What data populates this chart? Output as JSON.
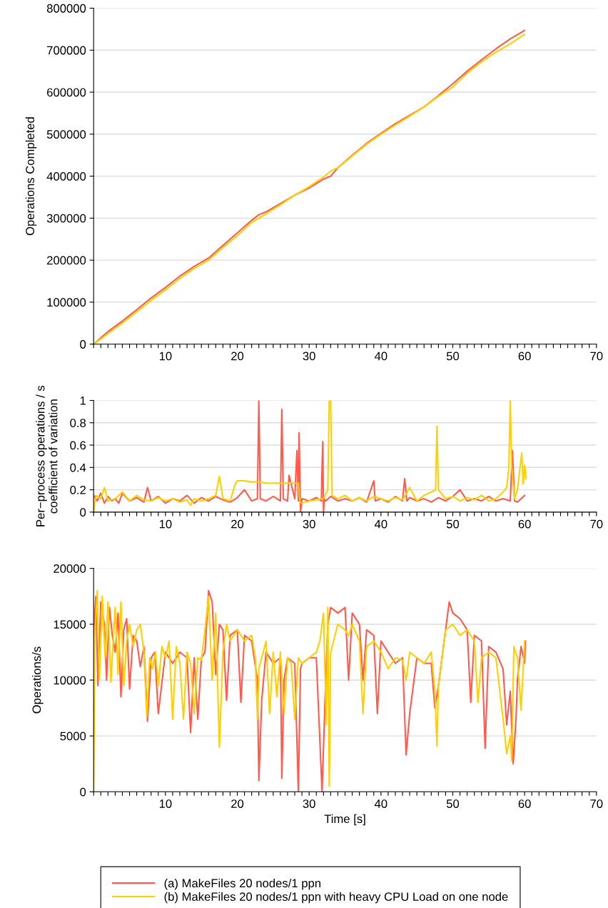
{
  "chart_data": [
    {
      "type": "line",
      "ylabel": "Operations Completed",
      "xlim": [
        0,
        70
      ],
      "ylim": [
        0,
        800000
      ],
      "yticks": [
        0,
        100000,
        200000,
        300000,
        400000,
        500000,
        600000,
        700000,
        800000
      ],
      "grid": "y",
      "xticks": [
        {
          "value": 0,
          "label": null
        },
        {
          "value": 1,
          "label": null
        },
        {
          "value": 2,
          "label": null
        },
        {
          "value": 3,
          "label": null
        },
        {
          "value": 4,
          "label": null
        },
        {
          "value": 5,
          "label": null
        },
        {
          "value": 6,
          "label": null
        },
        {
          "value": 7,
          "label": null
        },
        {
          "value": 8,
          "label": null
        },
        {
          "value": 9,
          "label": null
        },
        10,
        {
          "value": 11,
          "label": null
        },
        {
          "value": 12,
          "label": null
        },
        {
          "value": 13,
          "label": null
        },
        {
          "value": 14,
          "label": null
        },
        {
          "value": 15,
          "label": null
        },
        {
          "value": 16,
          "label": null
        },
        {
          "value": 17,
          "label": null
        },
        {
          "value": 18,
          "label": null
        },
        {
          "value": 19,
          "label": null
        },
        20,
        {
          "value": 21,
          "label": null
        },
        {
          "value": 22,
          "label": null
        },
        {
          "value": 23,
          "label": null
        },
        {
          "value": 24,
          "label": null
        },
        {
          "value": 25,
          "label": null
        },
        {
          "value": 26,
          "label": null
        },
        {
          "value": 27,
          "label": null
        },
        {
          "value": 28,
          "label": null
        },
        {
          "value": 29,
          "label": null
        },
        30,
        {
          "value": 31,
          "label": null
        },
        {
          "value": 32,
          "label": null
        },
        {
          "value": 33,
          "label": null
        },
        {
          "value": 34,
          "label": null
        },
        {
          "value": 35,
          "label": null
        },
        {
          "value": 36,
          "label": null
        },
        {
          "value": 37,
          "label": null
        },
        {
          "value": 38,
          "label": null
        },
        {
          "value": 39,
          "label": null
        },
        40,
        {
          "value": 41,
          "label": null
        },
        {
          "value": 42,
          "label": null
        },
        {
          "value": 43,
          "label": null
        },
        {
          "value": 44,
          "label": null
        },
        {
          "value": 45,
          "label": null
        },
        {
          "value": 46,
          "label": null
        },
        {
          "value": 47,
          "label": null
        },
        {
          "value": 48,
          "label": null
        },
        {
          "value": 49,
          "label": null
        },
        50,
        {
          "value": 51,
          "label": null
        },
        {
          "value": 52,
          "label": null
        },
        {
          "value": 53,
          "label": null
        },
        {
          "value": 54,
          "label": null
        },
        {
          "value": 55,
          "label": null
        },
        {
          "value": 56,
          "label": null
        },
        {
          "value": 57,
          "label": null
        },
        {
          "value": 58,
          "label": null
        },
        {
          "value": 59,
          "label": null
        },
        60,
        {
          "value": 61,
          "label": null
        },
        {
          "value": 62,
          "label": null
        },
        {
          "value": 63,
          "label": null
        },
        {
          "value": 64,
          "label": null
        },
        {
          "value": 65,
          "label": null
        },
        {
          "value": 66,
          "label": null
        },
        {
          "value": 67,
          "label": null
        },
        {
          "value": 68,
          "label": null
        },
        {
          "value": 69,
          "label": null
        },
        70
      ],
      "series": [
        {
          "color": "#ff5a4e",
          "x": [
            0,
            2,
            4,
            6,
            8,
            10,
            12,
            14,
            16,
            18,
            20,
            22,
            23,
            24,
            26,
            28,
            30,
            32,
            33,
            34,
            36,
            38,
            40,
            42,
            44,
            46,
            48,
            50,
            52,
            54,
            56,
            58,
            60
          ],
          "values": [
            0,
            30000,
            55000,
            82000,
            110000,
            135000,
            162000,
            185000,
            205000,
            235000,
            265000,
            295000,
            308000,
            315000,
            335000,
            355000,
            372000,
            393000,
            400000,
            420000,
            450000,
            478000,
            502000,
            525000,
            545000,
            565000,
            592000,
            620000,
            650000,
            677000,
            703000,
            727000,
            747000
          ]
        },
        {
          "color": "#ffd000",
          "x": [
            0,
            2,
            4,
            6,
            8,
            10,
            12,
            14,
            16,
            18,
            20,
            22,
            24,
            26,
            28,
            30,
            32,
            33,
            34,
            36,
            38,
            40,
            42,
            44,
            46,
            48,
            50,
            52,
            54,
            56,
            58,
            60
          ],
          "values": [
            0,
            25000,
            50000,
            77000,
            104000,
            129000,
            156000,
            180000,
            200000,
            230000,
            258000,
            290000,
            310000,
            332000,
            355000,
            375000,
            398000,
            412000,
            420000,
            448000,
            476000,
            500000,
            522000,
            543000,
            565000,
            590000,
            612000,
            645000,
            672000,
            695000,
            715000,
            738000
          ]
        }
      ]
    },
    {
      "type": "line",
      "ylabel": "Per−process operations / s\ncoefficient of variation",
      "xlim": [
        0,
        70
      ],
      "ylim": [
        0,
        1
      ],
      "yticks": [
        0,
        0.2,
        0.4,
        0.6,
        0.8,
        1
      ],
      "grid": "y",
      "xticks": [
        {
          "value": 0,
          "label": null
        },
        {
          "value": 1,
          "label": null
        },
        {
          "value": 2,
          "label": null
        },
        {
          "value": 3,
          "label": null
        },
        {
          "value": 4,
          "label": null
        },
        {
          "value": 5,
          "label": null
        },
        {
          "value": 6,
          "label": null
        },
        {
          "value": 7,
          "label": null
        },
        {
          "value": 8,
          "label": null
        },
        {
          "value": 9,
          "label": null
        },
        10,
        {
          "value": 11,
          "label": null
        },
        {
          "value": 12,
          "label": null
        },
        {
          "value": 13,
          "label": null
        },
        {
          "value": 14,
          "label": null
        },
        {
          "value": 15,
          "label": null
        },
        {
          "value": 16,
          "label": null
        },
        {
          "value": 17,
          "label": null
        },
        {
          "value": 18,
          "label": null
        },
        {
          "value": 19,
          "label": null
        },
        20,
        {
          "value": 21,
          "label": null
        },
        {
          "value": 22,
          "label": null
        },
        {
          "value": 23,
          "label": null
        },
        {
          "value": 24,
          "label": null
        },
        {
          "value": 25,
          "label": null
        },
        {
          "value": 26,
          "label": null
        },
        {
          "value": 27,
          "label": null
        },
        {
          "value": 28,
          "label": null
        },
        {
          "value": 29,
          "label": null
        },
        30,
        {
          "value": 31,
          "label": null
        },
        {
          "value": 32,
          "label": null
        },
        {
          "value": 33,
          "label": null
        },
        {
          "value": 34,
          "label": null
        },
        {
          "value": 35,
          "label": null
        },
        {
          "value": 36,
          "label": null
        },
        {
          "value": 37,
          "label": null
        },
        {
          "value": 38,
          "label": null
        },
        {
          "value": 39,
          "label": null
        },
        40,
        {
          "value": 41,
          "label": null
        },
        {
          "value": 42,
          "label": null
        },
        {
          "value": 43,
          "label": null
        },
        {
          "value": 44,
          "label": null
        },
        {
          "value": 45,
          "label": null
        },
        {
          "value": 46,
          "label": null
        },
        {
          "value": 47,
          "label": null
        },
        {
          "value": 48,
          "label": null
        },
        {
          "value": 49,
          "label": null
        },
        50,
        {
          "value": 51,
          "label": null
        },
        {
          "value": 52,
          "label": null
        },
        {
          "value": 53,
          "label": null
        },
        {
          "value": 54,
          "label": null
        },
        {
          "value": 55,
          "label": null
        },
        {
          "value": 56,
          "label": null
        },
        {
          "value": 57,
          "label": null
        },
        {
          "value": 58,
          "label": null
        },
        {
          "value": 59,
          "label": null
        },
        60,
        {
          "value": 61,
          "label": null
        },
        {
          "value": 62,
          "label": null
        },
        {
          "value": 63,
          "label": null
        },
        {
          "value": 64,
          "label": null
        },
        {
          "value": 65,
          "label": null
        },
        {
          "value": 66,
          "label": null
        },
        {
          "value": 67,
          "label": null
        },
        {
          "value": 68,
          "label": null
        },
        {
          "value": 69,
          "label": null
        },
        70
      ],
      "series": [
        {
          "color": "#ff5a4e",
          "x": [
            0,
            0.5,
            1,
            1.5,
            2,
            2.5,
            3,
            3.5,
            4,
            5,
            6,
            7,
            7.5,
            8,
            9,
            10,
            11,
            12,
            13,
            14,
            15,
            16,
            17,
            18,
            19,
            20,
            21,
            22,
            22.8,
            23,
            23.2,
            24,
            25,
            26,
            26.2,
            26.4,
            27,
            27.2,
            28,
            28.3,
            28.5,
            28.6,
            28.8,
            29,
            30,
            31,
            31.7,
            31.8,
            31.9,
            32,
            32.1,
            32.3,
            33,
            34,
            35,
            36,
            37,
            38,
            39,
            39.2,
            40,
            41,
            42,
            43,
            43.3,
            43.6,
            44,
            45,
            46,
            47,
            48,
            49,
            50,
            51,
            52,
            53,
            54,
            55,
            56,
            57,
            58,
            58.3,
            58.6,
            59,
            60
          ],
          "values": [
            0.15,
            0.1,
            0.17,
            0.08,
            0.14,
            0.1,
            0.12,
            0.08,
            0.17,
            0.1,
            0.13,
            0.09,
            0.22,
            0.1,
            0.14,
            0.08,
            0.12,
            0.1,
            0.15,
            0.08,
            0.13,
            0.1,
            0.14,
            0.11,
            0.09,
            0.13,
            0.2,
            0.1,
            0.12,
            1,
            0.12,
            0.1,
            0.14,
            0.1,
            0.92,
            0.12,
            0.1,
            0.33,
            0.12,
            0.55,
            0.1,
            0.71,
            0,
            0.12,
            0.1,
            0.13,
            0.1,
            0.4,
            0.63,
            0,
            0.12,
            0.1,
            0.14,
            0.1,
            0.12,
            0.1,
            0.13,
            0.09,
            0.28,
            0.1,
            0.12,
            0.09,
            0.14,
            0.1,
            0.3,
            0.1,
            0.13,
            0.1,
            0.12,
            0.09,
            0.13,
            0.1,
            0.14,
            0.2,
            0.1,
            0.12,
            0.1,
            0.14,
            0.1,
            0.12,
            0.1,
            0.55,
            0.1,
            0.09,
            0.15
          ]
        },
        {
          "color": "#ffd000",
          "x": [
            0,
            0.3,
            1,
            1.5,
            2,
            3,
            4,
            5,
            6,
            7,
            8,
            9,
            10,
            11,
            12,
            13,
            13.5,
            14,
            15,
            16,
            17,
            17.5,
            18,
            19,
            19.7,
            20,
            21,
            22,
            23,
            24,
            25,
            26,
            27,
            28,
            28.5,
            28.7,
            29,
            30,
            31,
            32,
            32.6,
            32.8,
            33,
            33.2,
            34,
            35,
            36,
            37,
            38,
            39,
            40,
            41,
            42,
            43,
            44,
            45,
            46,
            47,
            47.6,
            47.8,
            48,
            49,
            50,
            51,
            52,
            53,
            54,
            55,
            56,
            57,
            57.5,
            57.8,
            58,
            58.2,
            58.6,
            59,
            59.6,
            59.8,
            60,
            60.2
          ],
          "values": [
            0,
            0.15,
            0.12,
            0.22,
            0.1,
            0.12,
            0.18,
            0.1,
            0.15,
            0.11,
            0.1,
            0.13,
            0.1,
            0.12,
            0.09,
            0.11,
            0.06,
            0.12,
            0.1,
            0.12,
            0.15,
            0.32,
            0.12,
            0.1,
            0.25,
            0.28,
            0.28,
            0.27,
            0.27,
            0.26,
            0.26,
            0.26,
            0.26,
            0.26,
            0.26,
            0.09,
            0.08,
            0.1,
            0.11,
            0.12,
            0.2,
            1,
            1,
            0.15,
            0.12,
            0.15,
            0.1,
            0.13,
            0.1,
            0.14,
            0.12,
            0.1,
            0.13,
            0.11,
            0.22,
            0.1,
            0.15,
            0.18,
            0.2,
            0.77,
            0.2,
            0.12,
            0.14,
            0.1,
            0.13,
            0.11,
            0.15,
            0.1,
            0.12,
            0.18,
            0.22,
            0.4,
            1,
            0.4,
            0.12,
            0.2,
            0.53,
            0.25,
            0.42,
            0.3
          ]
        }
      ]
    },
    {
      "type": "line",
      "xlabel": "Time [s]",
      "ylabel": "Operations/s",
      "xlim": [
        0,
        70
      ],
      "ylim": [
        0,
        20000
      ],
      "yticks": [
        0,
        5000,
        10000,
        15000,
        20000
      ],
      "grid": "y",
      "legend": "bottom",
      "xticks": [
        {
          "value": 0,
          "label": null
        },
        {
          "value": 1,
          "label": null
        },
        {
          "value": 2,
          "label": null
        },
        {
          "value": 3,
          "label": null
        },
        {
          "value": 4,
          "label": null
        },
        {
          "value": 5,
          "label": null
        },
        {
          "value": 6,
          "label": null
        },
        {
          "value": 7,
          "label": null
        },
        {
          "value": 8,
          "label": null
        },
        {
          "value": 9,
          "label": null
        },
        10,
        {
          "value": 11,
          "label": null
        },
        {
          "value": 12,
          "label": null
        },
        {
          "value": 13,
          "label": null
        },
        {
          "value": 14,
          "label": null
        },
        {
          "value": 15,
          "label": null
        },
        {
          "value": 16,
          "label": null
        },
        {
          "value": 17,
          "label": null
        },
        {
          "value": 18,
          "label": null
        },
        {
          "value": 19,
          "label": null
        },
        20,
        {
          "value": 21,
          "label": null
        },
        {
          "value": 22,
          "label": null
        },
        {
          "value": 23,
          "label": null
        },
        {
          "value": 24,
          "label": null
        },
        {
          "value": 25,
          "label": null
        },
        {
          "value": 26,
          "label": null
        },
        {
          "value": 27,
          "label": null
        },
        {
          "value": 28,
          "label": null
        },
        {
          "value": 29,
          "label": null
        },
        30,
        {
          "value": 31,
          "label": null
        },
        {
          "value": 32,
          "label": null
        },
        {
          "value": 33,
          "label": null
        },
        {
          "value": 34,
          "label": null
        },
        {
          "value": 35,
          "label": null
        },
        {
          "value": 36,
          "label": null
        },
        {
          "value": 37,
          "label": null
        },
        {
          "value": 38,
          "label": null
        },
        {
          "value": 39,
          "label": null
        },
        40,
        {
          "value": 41,
          "label": null
        },
        {
          "value": 42,
          "label": null
        },
        {
          "value": 43,
          "label": null
        },
        {
          "value": 44,
          "label": null
        },
        {
          "value": 45,
          "label": null
        },
        {
          "value": 46,
          "label": null
        },
        {
          "value": 47,
          "label": null
        },
        {
          "value": 48,
          "label": null
        },
        {
          "value": 49,
          "label": null
        },
        50,
        {
          "value": 51,
          "label": null
        },
        {
          "value": 52,
          "label": null
        },
        {
          "value": 53,
          "label": null
        },
        {
          "value": 54,
          "label": null
        },
        {
          "value": 55,
          "label": null
        },
        {
          "value": 56,
          "label": null
        },
        {
          "value": 57,
          "label": null
        },
        {
          "value": 58,
          "label": null
        },
        {
          "value": 59,
          "label": null
        },
        60,
        {
          "value": 61,
          "label": null
        },
        {
          "value": 62,
          "label": null
        },
        {
          "value": 63,
          "label": null
        },
        {
          "value": 64,
          "label": null
        },
        {
          "value": 65,
          "label": null
        },
        {
          "value": 66,
          "label": null
        },
        {
          "value": 67,
          "label": null
        },
        {
          "value": 68,
          "label": null
        },
        {
          "value": 69,
          "label": null
        },
        70
      ],
      "series": [
        {
          "name": "(a) MakeFiles 20 nodes/1 ppn",
          "color": "#ff5a4e",
          "x": [
            0,
            0.3,
            0.6,
            1,
            1.5,
            1.8,
            2.2,
            2.6,
            3,
            3.4,
            3.8,
            4.2,
            4.6,
            5,
            5.5,
            6,
            6.5,
            7,
            7.5,
            8,
            8.5,
            9,
            10,
            11,
            12,
            13,
            13.5,
            14,
            14.5,
            15,
            15.5,
            16,
            16.5,
            17,
            17.5,
            18,
            18.5,
            19,
            20,
            20.5,
            21,
            22,
            22.8,
            23,
            23.4,
            24,
            25,
            26,
            26.2,
            26.5,
            27,
            28,
            28.5,
            28.8,
            29,
            30,
            31,
            31.8,
            32.2,
            32.6,
            33,
            34,
            35,
            35.5,
            36,
            37,
            37.5,
            38,
            39,
            39.5,
            40,
            41,
            42,
            43,
            43.5,
            44,
            45,
            46,
            47,
            47.5,
            48,
            48.5,
            49,
            49.5,
            50,
            51,
            52,
            52.5,
            53,
            54,
            54.5,
            55,
            56,
            57,
            57.5,
            58,
            58.4,
            58.8,
            59,
            59.5,
            60,
            60.1
          ],
          "values": [
            14000,
            17500,
            9500,
            17000,
            15000,
            10000,
            16500,
            14000,
            12500,
            16000,
            8500,
            14500,
            15500,
            9200,
            14000,
            13500,
            11200,
            13000,
            6300,
            12000,
            12500,
            7000,
            12500,
            11500,
            12500,
            12000,
            5300,
            12000,
            6500,
            12000,
            12500,
            18000,
            17000,
            10500,
            15000,
            14500,
            8200,
            14000,
            14500,
            8000,
            14000,
            13500,
            10000,
            1000,
            8200,
            12500,
            11500,
            12000,
            1200,
            10000,
            12000,
            11500,
            0,
            11000,
            11500,
            12000,
            12000,
            0,
            8000,
            15000,
            16500,
            16000,
            16500,
            10000,
            16000,
            15000,
            10000,
            14500,
            14000,
            7000,
            13500,
            12500,
            11500,
            12000,
            3300,
            7000,
            12000,
            11500,
            11500,
            7500,
            9500,
            12000,
            14500,
            17000,
            16000,
            15500,
            14500,
            8000,
            14000,
            13500,
            3900,
            13000,
            12500,
            11000,
            6000,
            9000,
            2500,
            6500,
            10000,
            13000,
            11500,
            13500
          ]
        },
        {
          "name": "(b) MakeFiles 20 nodes/1 ppn with heavy CPU Load on one node",
          "color": "#ffd000",
          "x": [
            0,
            0.2,
            0.5,
            0.8,
            1.2,
            1.6,
            2,
            2.4,
            3,
            3.4,
            3.8,
            4.2,
            4.6,
            5,
            5.5,
            6,
            6.5,
            7,
            7.4,
            7.8,
            8.2,
            8.6,
            9,
            9.5,
            10,
            10.5,
            11,
            11.5,
            12,
            12.5,
            13,
            13.5,
            14,
            14.5,
            15,
            15.5,
            16,
            16.5,
            17,
            17.5,
            18,
            18.5,
            19,
            19.5,
            20,
            21,
            22,
            22.5,
            22.8,
            23,
            24,
            24.5,
            25,
            25.5,
            26,
            26.5,
            27,
            27.5,
            28,
            28.5,
            29,
            30,
            31,
            31.5,
            32,
            32.4,
            32.6,
            32.8,
            33,
            34,
            35,
            35.5,
            36,
            37,
            37.5,
            38,
            39,
            40,
            41,
            42,
            43,
            43.5,
            44,
            45,
            46,
            47,
            47.5,
            47.8,
            48,
            48.5,
            49,
            50,
            51,
            52,
            53,
            53.5,
            54,
            55,
            56,
            57,
            57.5,
            58,
            58.2,
            58.5,
            59,
            59.5,
            60
          ],
          "values": [
            0,
            14500,
            18000,
            10000,
            17500,
            12000,
            17000,
            9800,
            16500,
            10500,
            17000,
            9500,
            13500,
            15000,
            13000,
            14500,
            15000,
            12500,
            6700,
            12000,
            11000,
            12500,
            9500,
            13000,
            12000,
            13500,
            6500,
            13000,
            11500,
            6500,
            12500,
            11500,
            7000,
            12000,
            11800,
            14500,
            17500,
            10000,
            16000,
            4000,
            12500,
            15000,
            13500,
            14000,
            14500,
            13500,
            14000,
            12000,
            6500,
            11000,
            13500,
            7000,
            12500,
            8500,
            12500,
            7000,
            12000,
            11500,
            6500,
            12000,
            11500,
            12000,
            12500,
            13500,
            16000,
            6000,
            16500,
            500,
            12500,
            15000,
            14500,
            14000,
            15000,
            13500,
            7000,
            13000,
            13500,
            12500,
            11000,
            12000,
            11800,
            10000,
            12500,
            12000,
            11500,
            12500,
            9000,
            4100,
            9500,
            12000,
            14500,
            15000,
            14000,
            14500,
            13500,
            8000,
            12000,
            12500,
            12000,
            6500,
            3400,
            5000,
            2800,
            13000,
            12000,
            7300,
            13500
          ]
        }
      ]
    }
  ]
}
